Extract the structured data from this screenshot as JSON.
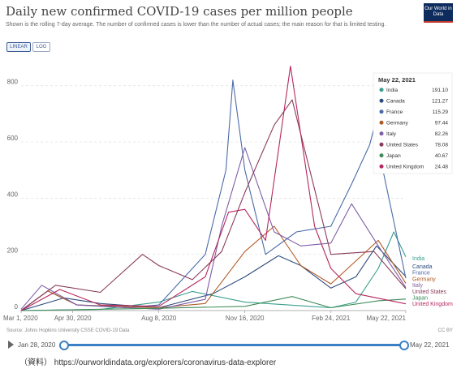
{
  "header": {
    "title": "Daily new confirmed COVID-19 cases per million people",
    "subtitle": "Shown is the rolling 7-day average. The number of confirmed cases is lower than the number of actual cases; the main reason for that is limited testing.",
    "logo": "Our World in Data"
  },
  "toggles": {
    "linear": "LINEAR",
    "log": "LOG"
  },
  "footer": {
    "source": "Source: Johns Hopkins University CSSE COVID-19 Data",
    "license": "CC BY",
    "start_date": "Jan 28, 2020",
    "end_date": "May 22, 2021",
    "note": "（資料） https://ourworldindata.org/explorers/coronavirus-data-explorer"
  },
  "chart_data": {
    "type": "line",
    "xlabel": "",
    "ylabel": "",
    "x_ticks": [
      "Mar 1, 2020",
      "Apr 30, 2020",
      "Aug 8, 2020",
      "Nov 16, 2020",
      "Feb 24, 2021",
      "May 22, 2021"
    ],
    "y_ticks": [
      0,
      200,
      400,
      600,
      800
    ],
    "ylim": [
      0,
      880
    ],
    "grid": true,
    "legend": {
      "date": "May 22, 2021",
      "placement": "top-right",
      "entries": [
        {
          "name": "India",
          "value": "191.10"
        },
        {
          "name": "Canada",
          "value": "121.27"
        },
        {
          "name": "France",
          "value": "115.29"
        },
        {
          "name": "Germany",
          "value": "97.44"
        },
        {
          "name": "Italy",
          "value": "82.26"
        },
        {
          "name": "United States",
          "value": "78.08"
        },
        {
          "name": "Japan",
          "value": "40.67"
        },
        {
          "name": "United Kingdom",
          "value": "24.48"
        }
      ]
    },
    "end_labels": [
      "India",
      "Canada",
      "France",
      "Germany",
      "Italy",
      "United States",
      "Japan",
      "United Kingdom"
    ],
    "series": [
      {
        "name": "India",
        "color": "#3a9e8f",
        "points": [
          [
            "Mar 1, 2020",
            0
          ],
          [
            "Jun 1, 2020",
            4
          ],
          [
            "Aug 8, 2020",
            30
          ],
          [
            "Sep 16, 2020",
            68
          ],
          [
            "Nov 16, 2020",
            30
          ],
          [
            "Feb 24, 2021",
            10
          ],
          [
            "Mar 25, 2021",
            30
          ],
          [
            "Apr 20, 2021",
            150
          ],
          [
            "May 8, 2021",
            280
          ],
          [
            "May 22, 2021",
            191
          ]
        ]
      },
      {
        "name": "Canada",
        "color": "#2e4c7d",
        "points": [
          [
            "Mar 1, 2020",
            0
          ],
          [
            "Apr 20, 2020",
            45
          ],
          [
            "Jun 1, 2020",
            25
          ],
          [
            "Aug 8, 2020",
            10
          ],
          [
            "Oct 10, 2020",
            60
          ],
          [
            "Nov 16, 2020",
            120
          ],
          [
            "Dec 25, 2020",
            195
          ],
          [
            "Jan 20, 2021",
            160
          ],
          [
            "Feb 24, 2021",
            80
          ],
          [
            "Mar 25, 2021",
            120
          ],
          [
            "Apr 18, 2021",
            230
          ],
          [
            "May 22, 2021",
            121
          ]
        ]
      },
      {
        "name": "France",
        "color": "#4b6ba8",
        "points": [
          [
            "Mar 1, 2020",
            0
          ],
          [
            "Apr 1, 2020",
            70
          ],
          [
            "May 5, 2020",
            20
          ],
          [
            "Jul 1, 2020",
            10
          ],
          [
            "Aug 8, 2020",
            20
          ],
          [
            "Oct 1, 2020",
            200
          ],
          [
            "Oct 25, 2020",
            500
          ],
          [
            "Nov 2, 2020",
            820
          ],
          [
            "Nov 16, 2020",
            500
          ],
          [
            "Dec 10, 2020",
            200
          ],
          [
            "Jan 15, 2021",
            280
          ],
          [
            "Feb 24, 2021",
            300
          ],
          [
            "Mar 20, 2021",
            450
          ],
          [
            "Apr 10, 2021",
            590
          ],
          [
            "Apr 15, 2021",
            650
          ],
          [
            "May 22, 2021",
            115
          ]
        ]
      },
      {
        "name": "Germany",
        "color": "#b05b23",
        "points": [
          [
            "Mar 1, 2020",
            0
          ],
          [
            "Apr 1, 2020",
            70
          ],
          [
            "May 5, 2020",
            20
          ],
          [
            "Aug 8, 2020",
            10
          ],
          [
            "Oct 1, 2020",
            25
          ],
          [
            "Nov 16, 2020",
            210
          ],
          [
            "Dec 20, 2020",
            300
          ],
          [
            "Jan 20, 2021",
            160
          ],
          [
            "Feb 24, 2021",
            95
          ],
          [
            "Apr 20, 2021",
            250
          ],
          [
            "May 22, 2021",
            97
          ]
        ]
      },
      {
        "name": "Italy",
        "color": "#7d5ea8",
        "points": [
          [
            "Mar 1, 2020",
            5
          ],
          [
            "Mar 25, 2020",
            90
          ],
          [
            "May 5, 2020",
            20
          ],
          [
            "Aug 8, 2020",
            5
          ],
          [
            "Oct 1, 2020",
            40
          ],
          [
            "Oct 20, 2020",
            300
          ],
          [
            "Nov 16, 2020",
            580
          ],
          [
            "Dec 20, 2020",
            280
          ],
          [
            "Jan 20, 2021",
            230
          ],
          [
            "Feb 24, 2021",
            240
          ],
          [
            "Mar 20, 2021",
            380
          ],
          [
            "Apr 20, 2021",
            230
          ],
          [
            "May 22, 2021",
            82
          ]
        ]
      },
      {
        "name": "United States",
        "color": "#8a3b5a",
        "points": [
          [
            "Mar 1, 2020",
            0
          ],
          [
            "Apr 10, 2020",
            90
          ],
          [
            "Jun 1, 2020",
            65
          ],
          [
            "Jul 20, 2020",
            200
          ],
          [
            "Aug 8, 2020",
            160
          ],
          [
            "Sep 16, 2020",
            110
          ],
          [
            "Oct 20, 2020",
            210
          ],
          [
            "Nov 16, 2020",
            420
          ],
          [
            "Dec 20, 2020",
            660
          ],
          [
            "Jan 10, 2021",
            750
          ],
          [
            "Feb 24, 2021",
            200
          ],
          [
            "Apr 15, 2021",
            210
          ],
          [
            "May 22, 2021",
            78
          ]
        ]
      },
      {
        "name": "Japan",
        "color": "#3f8c5a",
        "points": [
          [
            "Mar 1, 2020",
            0
          ],
          [
            "Aug 8, 2020",
            8
          ],
          [
            "Nov 16, 2020",
            15
          ],
          [
            "Jan 10, 2021",
            50
          ],
          [
            "Feb 24, 2021",
            10
          ],
          [
            "Apr 20, 2021",
            35
          ],
          [
            "May 22, 2021",
            41
          ]
        ]
      },
      {
        "name": "United Kingdom",
        "color": "#b5275f",
        "points": [
          [
            "Mar 1, 2020",
            0
          ],
          [
            "Apr 15, 2020",
            75
          ],
          [
            "Jun 1, 2020",
            20
          ],
          [
            "Aug 8, 2020",
            15
          ],
          [
            "Oct 1, 2020",
            120
          ],
          [
            "Oct 28, 2020",
            350
          ],
          [
            "Nov 16, 2020",
            360
          ],
          [
            "Dec 10, 2020",
            250
          ],
          [
            "Jan 8, 2021",
            870
          ],
          [
            "Feb 5, 2021",
            300
          ],
          [
            "Feb 24, 2021",
            150
          ],
          [
            "Mar 25, 2021",
            60
          ],
          [
            "May 22, 2021",
            24
          ]
        ]
      }
    ]
  }
}
